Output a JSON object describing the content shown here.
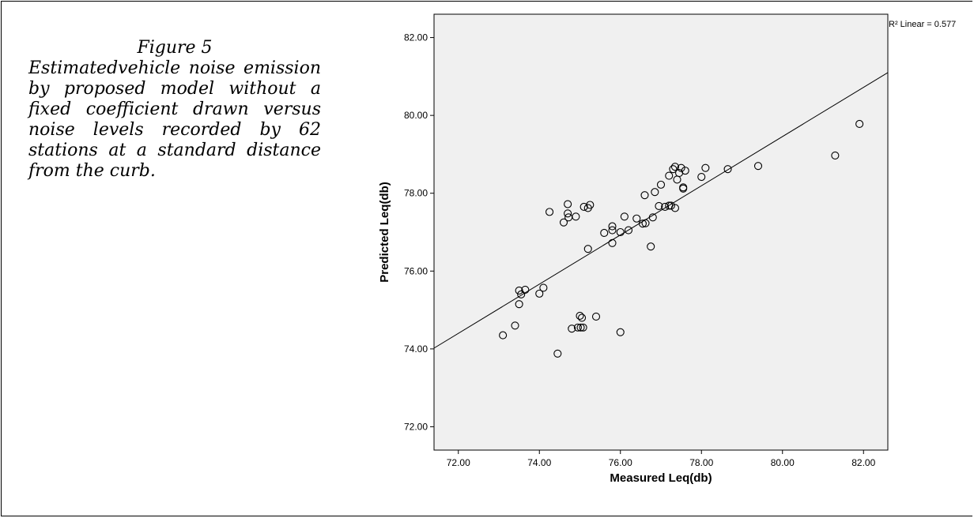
{
  "caption": {
    "title": "Figure 5",
    "text": "Estimatedvehicle noise emission by proposed model without a fixed coefficient drawn versus noise levels recorded by 62 stations at a standard distance from the curb."
  },
  "chart_data": {
    "type": "scatter",
    "xlabel": "Measured Leq(db)",
    "ylabel": "Predicted Leq(db)",
    "xlim": [
      71.4,
      82.6
    ],
    "ylim": [
      71.4,
      82.6
    ],
    "xticks": [
      "72.00",
      "74.00",
      "76.00",
      "78.00",
      "80.00",
      "82.00"
    ],
    "yticks": [
      "72.00",
      "74.00",
      "76.00",
      "78.00",
      "80.00",
      "82.00"
    ],
    "grid": false,
    "background": "#f0f0f0",
    "marker_color": "#000000",
    "annotation": "R² Linear = 0.577",
    "fit_line": {
      "x": [
        71.4,
        82.6
      ],
      "y": [
        74.02,
        81.1
      ]
    },
    "points": [
      [
        73.1,
        74.35
      ],
      [
        73.4,
        74.6
      ],
      [
        73.5,
        75.5
      ],
      [
        73.5,
        75.15
      ],
      [
        73.55,
        75.4
      ],
      [
        73.65,
        75.52
      ],
      [
        74.0,
        75.42
      ],
      [
        74.1,
        75.57
      ],
      [
        74.25,
        77.52
      ],
      [
        74.45,
        73.88
      ],
      [
        74.6,
        77.25
      ],
      [
        74.7,
        77.72
      ],
      [
        74.7,
        77.48
      ],
      [
        74.72,
        77.38
      ],
      [
        74.8,
        74.52
      ],
      [
        74.9,
        77.4
      ],
      [
        74.95,
        74.55
      ],
      [
        75.0,
        74.85
      ],
      [
        75.02,
        74.55
      ],
      [
        75.05,
        74.8
      ],
      [
        75.08,
        74.55
      ],
      [
        75.1,
        77.65
      ],
      [
        75.2,
        76.57
      ],
      [
        75.2,
        77.62
      ],
      [
        75.25,
        77.7
      ],
      [
        75.4,
        74.83
      ],
      [
        75.6,
        76.98
      ],
      [
        75.8,
        76.72
      ],
      [
        75.8,
        77.05
      ],
      [
        75.8,
        77.15
      ],
      [
        76.0,
        77.0
      ],
      [
        76.0,
        74.43
      ],
      [
        76.1,
        77.4
      ],
      [
        76.2,
        77.05
      ],
      [
        76.4,
        77.35
      ],
      [
        76.55,
        77.22
      ],
      [
        76.6,
        77.95
      ],
      [
        76.62,
        77.23
      ],
      [
        76.75,
        76.63
      ],
      [
        76.8,
        77.38
      ],
      [
        76.85,
        78.03
      ],
      [
        76.95,
        77.67
      ],
      [
        77.0,
        78.22
      ],
      [
        77.1,
        77.65
      ],
      [
        77.2,
        77.68
      ],
      [
        77.2,
        78.45
      ],
      [
        77.25,
        77.68
      ],
      [
        77.3,
        78.62
      ],
      [
        77.35,
        78.68
      ],
      [
        77.35,
        77.62
      ],
      [
        77.4,
        78.35
      ],
      [
        77.45,
        78.52
      ],
      [
        77.5,
        78.65
      ],
      [
        77.55,
        78.15
      ],
      [
        77.55,
        78.12
      ],
      [
        77.6,
        78.58
      ],
      [
        78.0,
        78.42
      ],
      [
        78.1,
        78.65
      ],
      [
        78.65,
        78.62
      ],
      [
        79.4,
        78.7
      ],
      [
        81.3,
        78.97
      ],
      [
        81.9,
        79.78
      ]
    ]
  }
}
